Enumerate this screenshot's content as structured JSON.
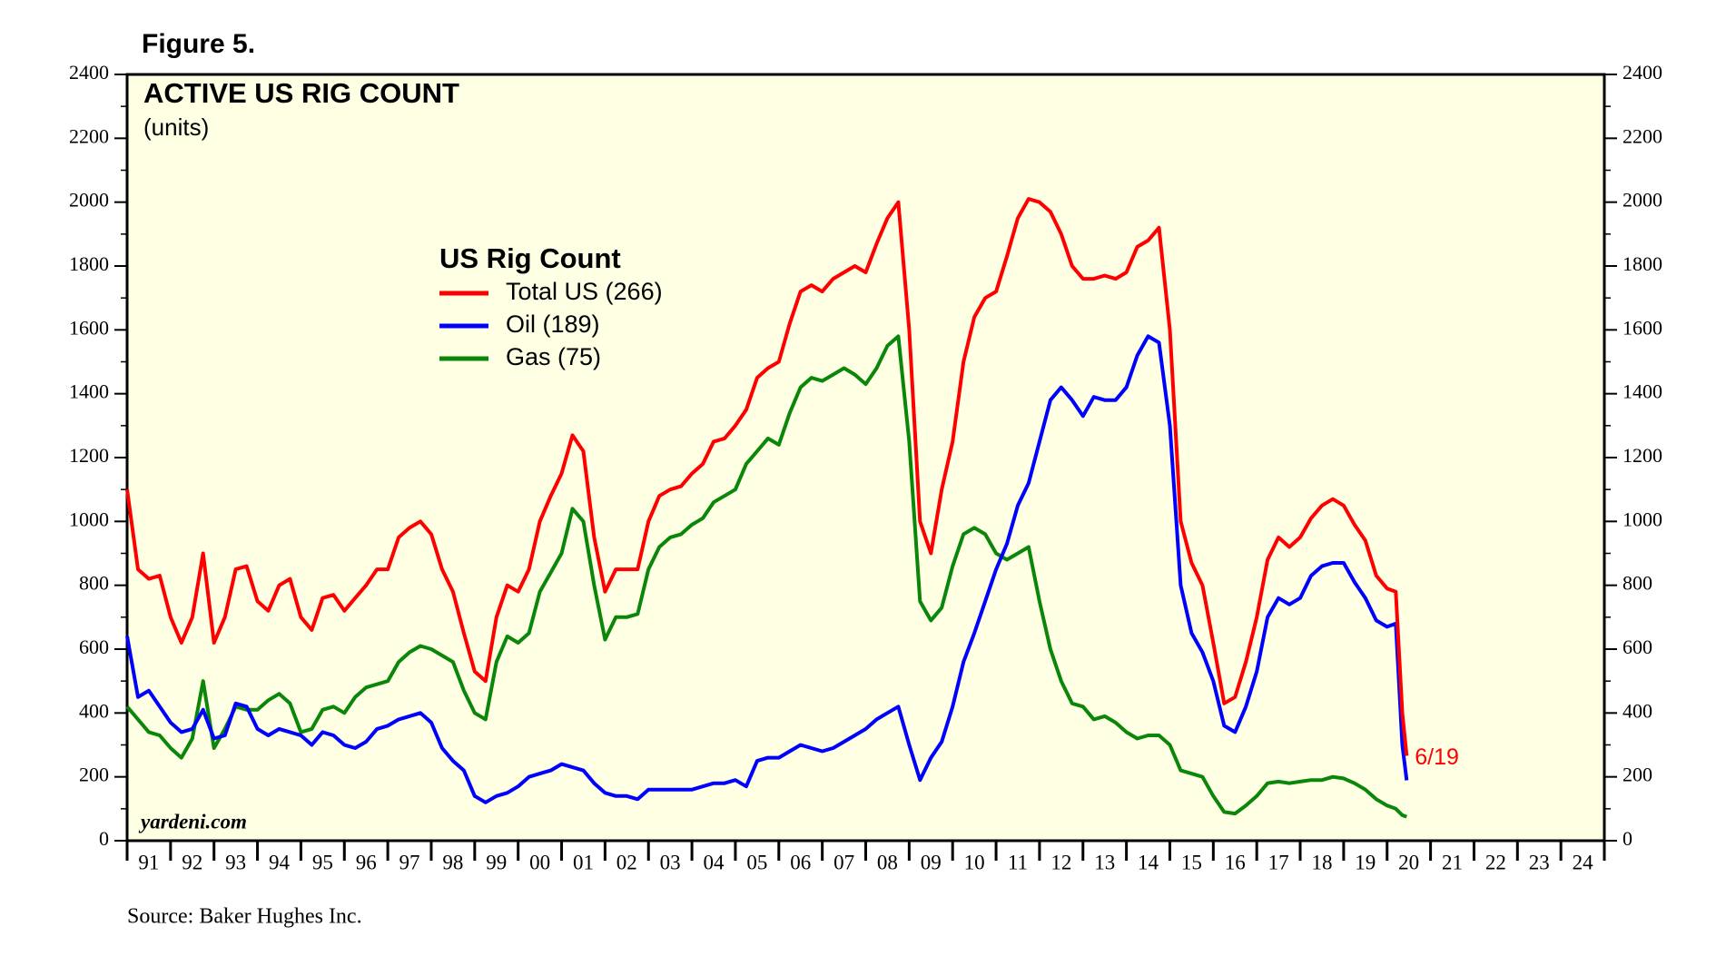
{
  "figure_label": "Figure 5.",
  "source": "Source: Baker Hughes Inc.",
  "watermark": "yardeni.com",
  "chart_data": {
    "type": "line",
    "title": "ACTIVE US RIG COUNT",
    "subtitle": "(units)",
    "legend_title": "US Rig Count",
    "annotation": "6/19",
    "background": "#ffffe3",
    "xlim": [
      1991,
      2025
    ],
    "xticks": [
      {
        "value": 1991,
        "label": "91"
      },
      {
        "value": 1992,
        "label": "92"
      },
      {
        "value": 1993,
        "label": "93"
      },
      {
        "value": 1994,
        "label": "94"
      },
      {
        "value": 1995,
        "label": "95"
      },
      {
        "value": 1996,
        "label": "96"
      },
      {
        "value": 1997,
        "label": "97"
      },
      {
        "value": 1998,
        "label": "98"
      },
      {
        "value": 1999,
        "label": "99"
      },
      {
        "value": 2000,
        "label": "00"
      },
      {
        "value": 2001,
        "label": "01"
      },
      {
        "value": 2002,
        "label": "02"
      },
      {
        "value": 2003,
        "label": "03"
      },
      {
        "value": 2004,
        "label": "04"
      },
      {
        "value": 2005,
        "label": "05"
      },
      {
        "value": 2006,
        "label": "06"
      },
      {
        "value": 2007,
        "label": "07"
      },
      {
        "value": 2008,
        "label": "08"
      },
      {
        "value": 2009,
        "label": "09"
      },
      {
        "value": 2010,
        "label": "10"
      },
      {
        "value": 2011,
        "label": "11"
      },
      {
        "value": 2012,
        "label": "12"
      },
      {
        "value": 2013,
        "label": "13"
      },
      {
        "value": 2014,
        "label": "14"
      },
      {
        "value": 2015,
        "label": "15"
      },
      {
        "value": 2016,
        "label": "16"
      },
      {
        "value": 2017,
        "label": "17"
      },
      {
        "value": 2018,
        "label": "18"
      },
      {
        "value": 2019,
        "label": "19"
      },
      {
        "value": 2020,
        "label": "20"
      },
      {
        "value": 2021,
        "label": "21"
      },
      {
        "value": 2022,
        "label": "22"
      },
      {
        "value": 2023,
        "label": "23"
      },
      {
        "value": 2024,
        "label": "24"
      }
    ],
    "ylim": [
      0,
      2400
    ],
    "yticks": [
      0,
      200,
      400,
      600,
      800,
      1000,
      1200,
      1400,
      1600,
      1800,
      2000,
      2200,
      2400
    ],
    "x": [
      1991,
      1991.25,
      1991.5,
      1991.75,
      1992,
      1992.25,
      1992.5,
      1992.75,
      1993,
      1993.25,
      1993.5,
      1993.75,
      1994,
      1994.25,
      1994.5,
      1994.75,
      1995,
      1995.25,
      1995.5,
      1995.75,
      1996,
      1996.25,
      1996.5,
      1996.75,
      1997,
      1997.25,
      1997.5,
      1997.75,
      1998,
      1998.25,
      1998.5,
      1998.75,
      1999,
      1999.25,
      1999.5,
      1999.75,
      2000,
      2000.25,
      2000.5,
      2000.75,
      2001,
      2001.25,
      2001.5,
      2001.75,
      2002,
      2002.25,
      2002.5,
      2002.75,
      2003,
      2003.25,
      2003.5,
      2003.75,
      2004,
      2004.25,
      2004.5,
      2004.75,
      2005,
      2005.25,
      2005.5,
      2005.75,
      2006,
      2006.25,
      2006.5,
      2006.75,
      2007,
      2007.25,
      2007.5,
      2007.75,
      2008,
      2008.25,
      2008.5,
      2008.75,
      2009,
      2009.25,
      2009.5,
      2009.75,
      2010,
      2010.25,
      2010.5,
      2010.75,
      2011,
      2011.25,
      2011.5,
      2011.75,
      2012,
      2012.25,
      2012.5,
      2012.75,
      2013,
      2013.25,
      2013.5,
      2013.75,
      2014,
      2014.25,
      2014.5,
      2014.75,
      2015,
      2015.25,
      2015.5,
      2015.75,
      2016,
      2016.25,
      2016.5,
      2016.75,
      2017,
      2017.25,
      2017.5,
      2017.75,
      2018,
      2018.25,
      2018.5,
      2018.75,
      2019,
      2019.25,
      2019.5,
      2019.75,
      2020,
      2020.2,
      2020.35,
      2020.45
    ],
    "series": [
      {
        "name": "Total US (266)",
        "color": "#ff0000",
        "values": [
          1100,
          850,
          820,
          830,
          700,
          620,
          700,
          900,
          620,
          700,
          850,
          860,
          750,
          720,
          800,
          820,
          700,
          660,
          760,
          770,
          720,
          760,
          800,
          850,
          850,
          950,
          980,
          1000,
          960,
          850,
          780,
          650,
          530,
          500,
          700,
          800,
          780,
          850,
          1000,
          1080,
          1150,
          1270,
          1220,
          950,
          780,
          850,
          850,
          850,
          1000,
          1080,
          1100,
          1110,
          1150,
          1180,
          1250,
          1260,
          1300,
          1350,
          1450,
          1480,
          1500,
          1620,
          1720,
          1740,
          1720,
          1760,
          1780,
          1800,
          1780,
          1870,
          1950,
          2000,
          1600,
          1000,
          900,
          1100,
          1250,
          1500,
          1640,
          1700,
          1720,
          1830,
          1950,
          2010,
          2000,
          1970,
          1900,
          1800,
          1760,
          1760,
          1770,
          1760,
          1780,
          1860,
          1880,
          1920,
          1600,
          1000,
          870,
          800,
          620,
          430,
          450,
          560,
          700,
          880,
          950,
          920,
          950,
          1010,
          1050,
          1070,
          1050,
          990,
          940,
          830,
          790,
          780,
          400,
          266
        ]
      },
      {
        "name": "Oil (189)",
        "color": "#0000ff",
        "values": [
          640,
          450,
          470,
          420,
          370,
          340,
          350,
          410,
          320,
          330,
          430,
          420,
          350,
          330,
          350,
          340,
          330,
          300,
          340,
          330,
          300,
          290,
          310,
          350,
          360,
          380,
          390,
          400,
          370,
          290,
          250,
          220,
          140,
          120,
          140,
          150,
          170,
          200,
          210,
          220,
          240,
          230,
          220,
          180,
          150,
          140,
          140,
          130,
          160,
          160,
          160,
          160,
          160,
          170,
          180,
          180,
          190,
          170,
          250,
          260,
          260,
          280,
          300,
          290,
          280,
          290,
          310,
          330,
          350,
          380,
          400,
          420,
          300,
          190,
          260,
          310,
          420,
          560,
          650,
          750,
          850,
          930,
          1050,
          1120,
          1250,
          1380,
          1420,
          1380,
          1330,
          1390,
          1380,
          1380,
          1420,
          1520,
          1580,
          1560,
          1300,
          800,
          650,
          590,
          500,
          360,
          340,
          420,
          530,
          700,
          760,
          740,
          760,
          830,
          860,
          870,
          870,
          810,
          760,
          690,
          670,
          680,
          300,
          189
        ]
      },
      {
        "name": "Gas (75)",
        "color": "#0a870a",
        "values": [
          420,
          380,
          340,
          330,
          290,
          260,
          320,
          500,
          290,
          350,
          420,
          410,
          410,
          440,
          460,
          430,
          340,
          350,
          410,
          420,
          400,
          450,
          480,
          490,
          500,
          560,
          590,
          610,
          600,
          580,
          560,
          470,
          400,
          380,
          560,
          640,
          620,
          650,
          780,
          840,
          900,
          1040,
          1000,
          800,
          630,
          700,
          700,
          710,
          850,
          920,
          950,
          960,
          990,
          1010,
          1060,
          1080,
          1100,
          1180,
          1220,
          1260,
          1240,
          1340,
          1420,
          1450,
          1440,
          1460,
          1480,
          1460,
          1430,
          1480,
          1550,
          1580,
          1250,
          750,
          690,
          730,
          860,
          960,
          980,
          960,
          900,
          880,
          900,
          920,
          750,
          600,
          500,
          430,
          420,
          380,
          390,
          370,
          340,
          320,
          330,
          330,
          300,
          220,
          210,
          200,
          140,
          90,
          85,
          110,
          140,
          180,
          185,
          180,
          185,
          190,
          190,
          200,
          195,
          180,
          160,
          130,
          110,
          100,
          80,
          75
        ]
      }
    ]
  }
}
